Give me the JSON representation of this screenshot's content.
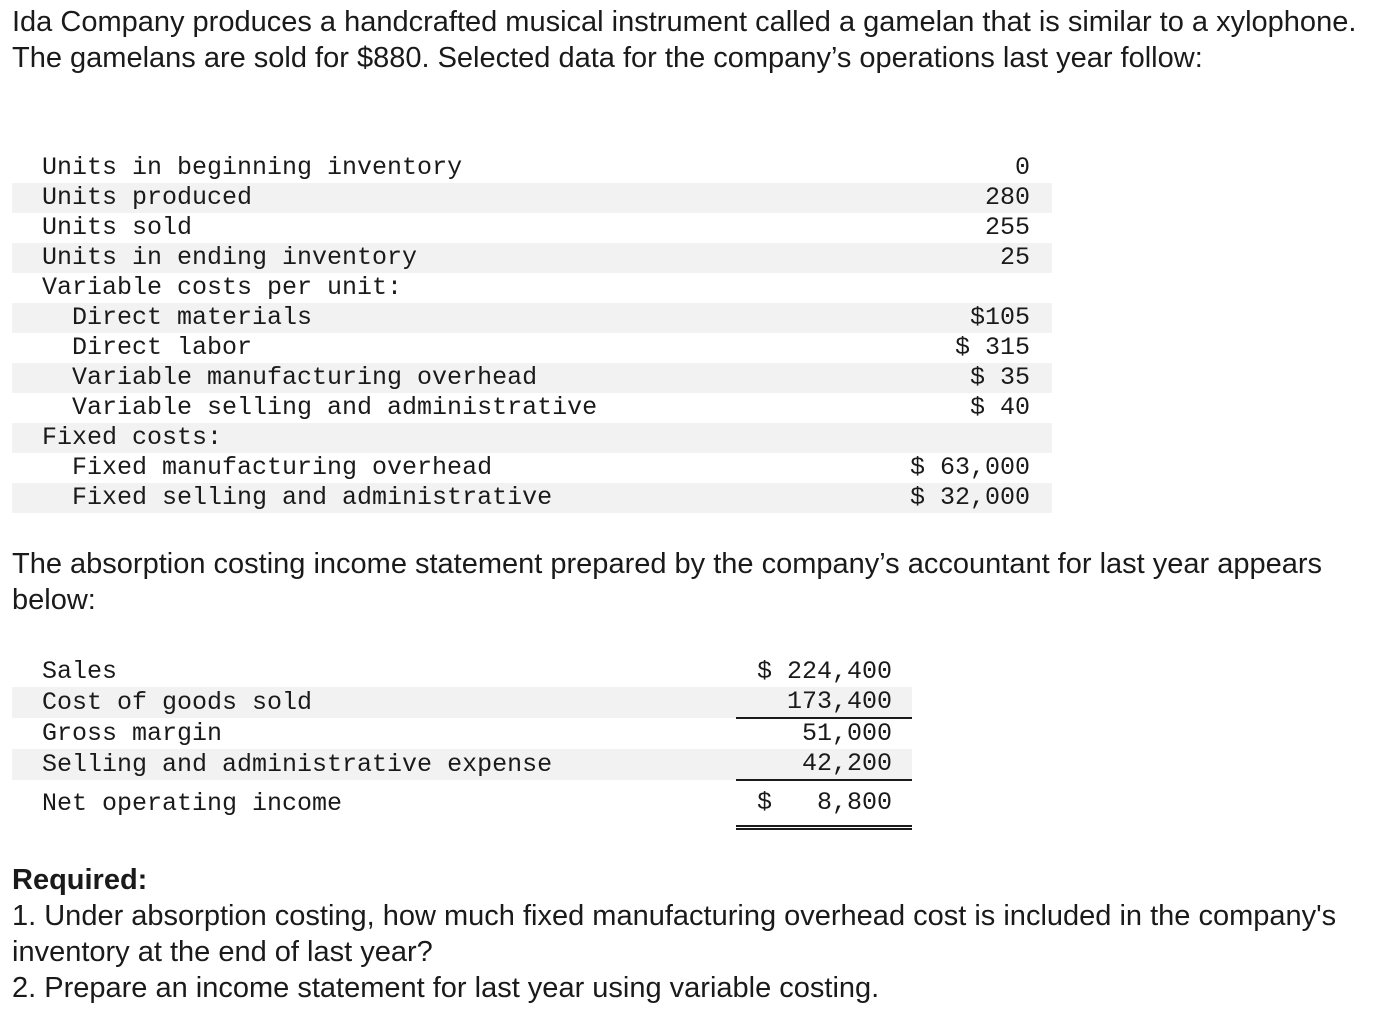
{
  "intro": "Ida Company produces a handcrafted musical instrument called a gamelan that is similar to a xylophone. The gamelans are sold for $880. Selected data for the company’s operations last year follow:",
  "data_table": {
    "rows": [
      {
        "label": "Units in beginning inventory",
        "value": "0"
      },
      {
        "label": "Units produced",
        "value": "280"
      },
      {
        "label": "Units sold",
        "value": "255"
      },
      {
        "label": "Units in ending inventory",
        "value": "25"
      },
      {
        "label": "Variable costs per unit:",
        "value": ""
      },
      {
        "label": "Direct materials",
        "value": "$105"
      },
      {
        "label": "Direct labor",
        "value": "$ 315"
      },
      {
        "label": "Variable manufacturing overhead",
        "value": "$ 35"
      },
      {
        "label": "Variable selling and administrative",
        "value": "$ 40"
      },
      {
        "label": "Fixed costs:",
        "value": ""
      },
      {
        "label": "Fixed manufacturing overhead",
        "value": "$ 63,000"
      },
      {
        "label": "Fixed selling and administrative",
        "value": "$ 32,000"
      }
    ]
  },
  "transition": "The absorption costing income statement prepared by the company’s accountant for last year appears below:",
  "income_statement": {
    "rows": [
      {
        "label": "Sales",
        "value": "$ 224,400"
      },
      {
        "label": "Cost of goods sold",
        "value": "173,400"
      },
      {
        "label": "Gross margin",
        "value": "51,000"
      },
      {
        "label": "Selling and administrative expense",
        "value": "42,200"
      },
      {
        "label": "Net operating income",
        "value": "$   8,800"
      }
    ]
  },
  "required": {
    "title": "Required:",
    "items": [
      "1. Under absorption costing, how much fixed manufacturing overhead cost is included in the company's inventory at the end of last year?",
      "2. Prepare an income statement for last year using variable costing."
    ]
  }
}
